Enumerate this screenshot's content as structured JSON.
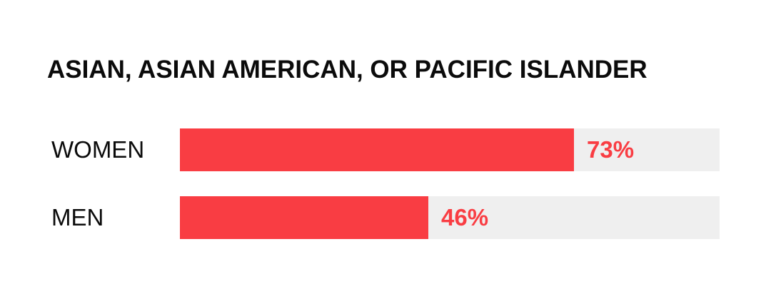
{
  "chart_data": {
    "type": "bar",
    "orientation": "horizontal",
    "title": "ASIAN, ASIAN AMERICAN, OR PACIFIC ISLANDER",
    "categories": [
      "WOMEN",
      "MEN"
    ],
    "values": [
      73,
      46
    ],
    "value_labels": [
      "73%",
      "46%"
    ],
    "xlim": [
      0,
      100
    ],
    "grid": false,
    "legend": "none",
    "colors": {
      "bar": "#f93d43",
      "track": "#efefef",
      "value_text": "#f93d43",
      "text": "#0b0b0b"
    }
  }
}
